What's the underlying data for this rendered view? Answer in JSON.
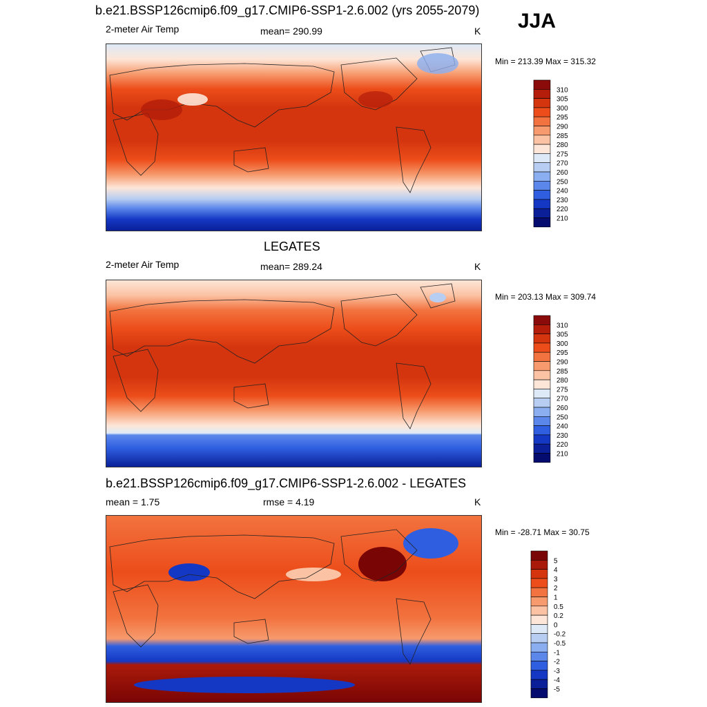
{
  "season": "JJA",
  "panels": [
    {
      "title": "b.e21.BSSP126cmip6.f09_g17.CMIP6-SSP1-2.6.002 (yrs 2055-2079)",
      "left": "2-meter Air Temp",
      "center": "mean= 290.99",
      "right": "K",
      "minmax": "Min = 213.39 Max = 315.32",
      "colorbar_labels": [
        "310",
        "305",
        "300",
        "295",
        "290",
        "285",
        "280",
        "275",
        "270",
        "260",
        "250",
        "240",
        "230",
        "220",
        "210"
      ]
    },
    {
      "title": "LEGATES",
      "left": "2-meter Air Temp",
      "center": "mean= 289.24",
      "right": "K",
      "minmax": "Min = 203.13 Max = 309.74",
      "colorbar_labels": [
        "310",
        "305",
        "300",
        "295",
        "290",
        "285",
        "280",
        "275",
        "270",
        "260",
        "250",
        "240",
        "230",
        "220",
        "210"
      ]
    },
    {
      "title": "b.e21.BSSP126cmip6.f09_g17.CMIP6-SSP1-2.6.002 - LEGATES",
      "left": "mean =   1.75",
      "center": "rmse =   4.19",
      "right": "K",
      "minmax": "Min = -28.71 Max =  30.75",
      "colorbar_labels": [
        "5",
        "4",
        "3",
        "2",
        "1",
        "0.5",
        "0.2",
        "0",
        "-0.2",
        "-0.5",
        "-1",
        "-2",
        "-3",
        "-4",
        "-5"
      ]
    }
  ],
  "palettes": {
    "temp": [
      "#8b0a0a",
      "#b31d0a",
      "#d4350e",
      "#ec4d1a",
      "#f2733f",
      "#f79a6d",
      "#fbc2a3",
      "#fde6d8",
      "#dde9f7",
      "#b7cdf2",
      "#8aaef0",
      "#5c87ea",
      "#2f5fe0",
      "#1438c4",
      "#0a1f98",
      "#050c70"
    ],
    "diff": [
      "#7a0505",
      "#aa1a0a",
      "#d4350e",
      "#ec4d1a",
      "#f2733f",
      "#f79a6d",
      "#fbc2a3",
      "#fde6d8",
      "#dde9f7",
      "#b7cdf2",
      "#8aaef0",
      "#5c87ea",
      "#2f5fe0",
      "#1438c4",
      "#0a1f98",
      "#050c70"
    ]
  }
}
